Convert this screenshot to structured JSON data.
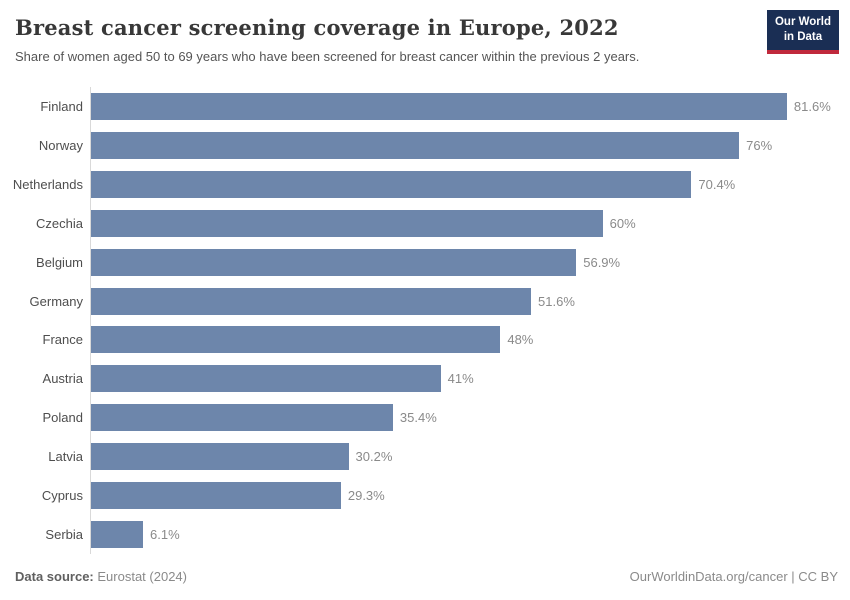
{
  "header": {
    "title": "Breast cancer screening coverage in Europe, 2022",
    "subtitle": "Share of women aged 50 to 69 years who have been screened for breast cancer within the previous 2 years.",
    "logo": {
      "line1": "Our World",
      "line2": "in Data"
    }
  },
  "chart_data": {
    "type": "bar",
    "orientation": "horizontal",
    "title": "Breast cancer screening coverage in Europe, 2022",
    "categories": [
      "Finland",
      "Norway",
      "Netherlands",
      "Czechia",
      "Belgium",
      "Germany",
      "France",
      "Austria",
      "Poland",
      "Latvia",
      "Cyprus",
      "Serbia"
    ],
    "values": [
      81.6,
      76,
      70.4,
      60,
      56.9,
      51.6,
      48,
      41,
      35.4,
      30.2,
      29.3,
      6.1
    ],
    "value_labels": [
      "81.6%",
      "76%",
      "70.4%",
      "60%",
      "56.9%",
      "51.6%",
      "48%",
      "41%",
      "35.4%",
      "30.2%",
      "29.3%",
      "6.1%"
    ],
    "unit": "%",
    "xlim": [
      0,
      89
    ],
    "grid": false,
    "legend": "none",
    "bar_color": "#6d86ab",
    "axis_line_color": "#d9d9d9"
  },
  "footer": {
    "datasource_label": "Data source:",
    "datasource_value": "Eurostat (2024)",
    "attribution": "OurWorldinData.org/cancer | CC BY"
  },
  "colors": {
    "logo_bg": "#1a2e54",
    "logo_underline": "#c0293c",
    "title_text": "#383838",
    "label_text": "#4e4e4e",
    "value_text": "#8a8a8a"
  }
}
